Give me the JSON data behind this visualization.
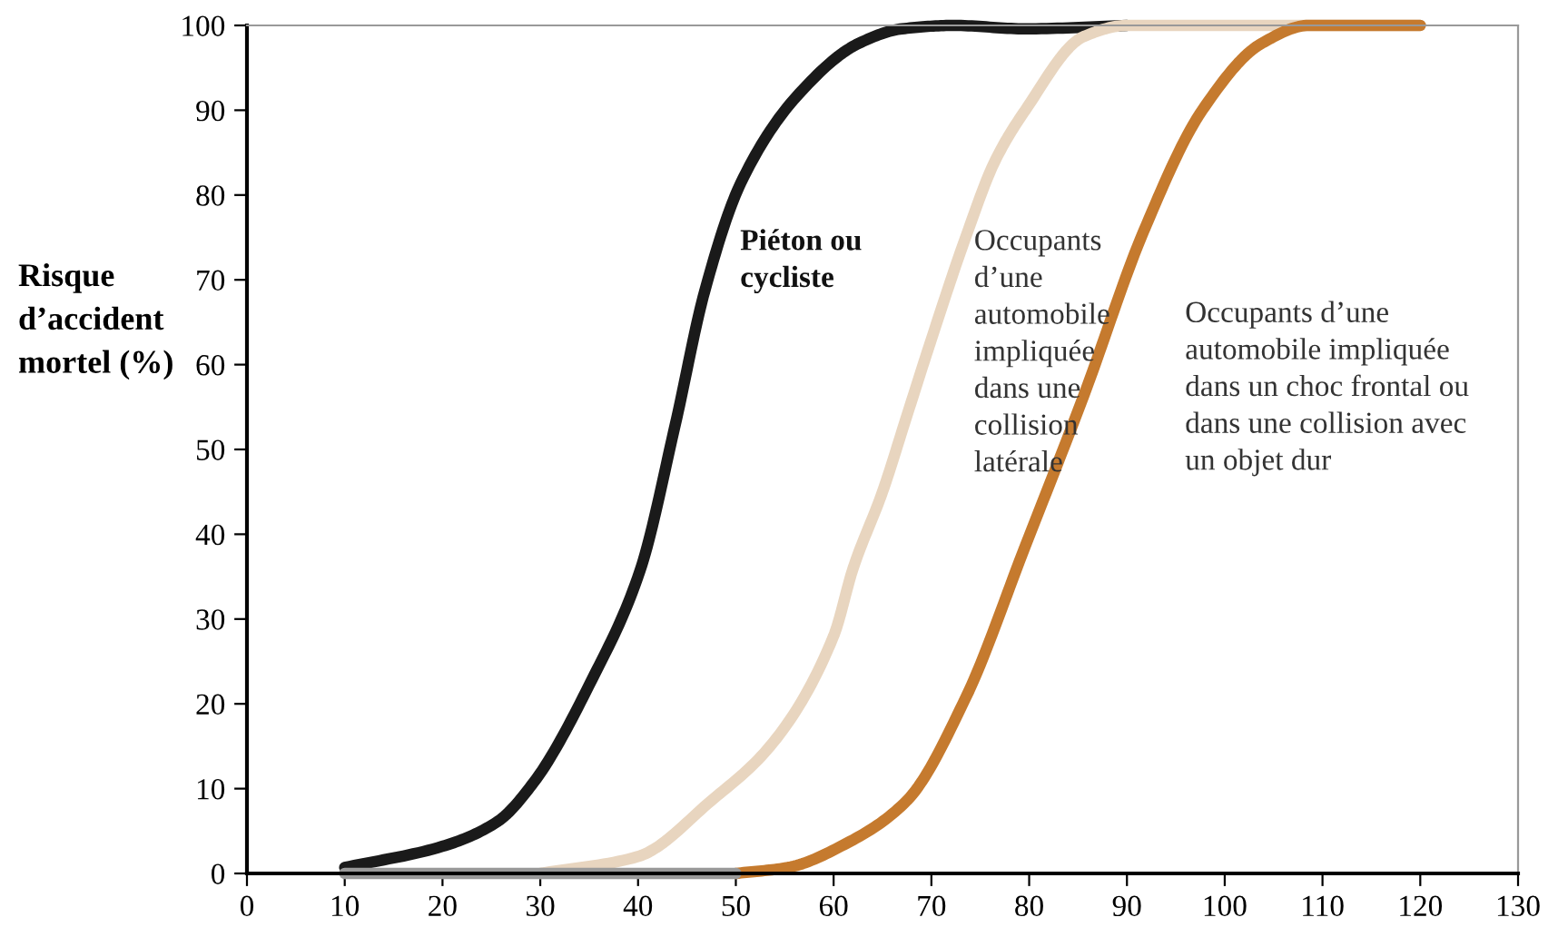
{
  "chart_data": {
    "type": "line",
    "ylabel": "Risque\nd’accident\nmortel (%)",
    "xlim": [
      0,
      130
    ],
    "xticks": [
      0,
      10,
      20,
      30,
      40,
      50,
      60,
      70,
      80,
      90,
      100,
      110,
      120,
      130
    ],
    "ylim": [
      0,
      100
    ],
    "yticks": [
      0,
      10,
      20,
      30,
      40,
      50,
      60,
      70,
      80,
      90,
      100
    ],
    "grid": false,
    "legend": false,
    "series": [
      {
        "color": "#1a1a1a",
        "x": [
          10,
          20,
          25.6,
          29.3,
          35.3,
          40.2,
          43.8,
          46.8,
          50.5,
          56.5,
          62.6,
          67,
          72.3,
          79.6,
          90
        ],
        "values": [
          0.7,
          3.2,
          6.1,
          10.7,
          22.9,
          35.7,
          52.9,
          68.6,
          81.4,
          92,
          97.9,
          99.6,
          100,
          99.6,
          100
        ]
      },
      {
        "color": "#e8d5bf",
        "x": [
          30,
          40,
          47.5,
          53.5,
          60,
          62,
          65,
          67.5,
          70,
          73.5,
          76.5,
          79.6,
          85.6,
          90,
          120
        ],
        "values": [
          0,
          2,
          8.6,
          15,
          28,
          36,
          45,
          54,
          63,
          75,
          84,
          90,
          98.7,
          100,
          100
        ]
      },
      {
        "color": "#c57a2e",
        "x": [
          50,
          55.3,
          61.4,
          67.5,
          73.5,
          79.6,
          85.6,
          91.7,
          97.7,
          103.8,
          108.6,
          120
        ],
        "values": [
          0,
          0.7,
          3.6,
          8.6,
          20.7,
          38.6,
          56.4,
          75.7,
          90,
          97.9,
          100,
          100
        ]
      },
      {
        "color": "#999999",
        "x": [
          10,
          50
        ],
        "values": [
          0,
          0
        ]
      }
    ],
    "annotations": [
      "Piéton ou\ncycliste",
      "Occupants\nd’une\nautomobile\nimpliquée\ndans une\ncollision\nlatérale",
      "Occupants d’une\nautomobile impliquée\ndans un choc frontal ou\ndans une collision avec\nun objet dur"
    ]
  }
}
